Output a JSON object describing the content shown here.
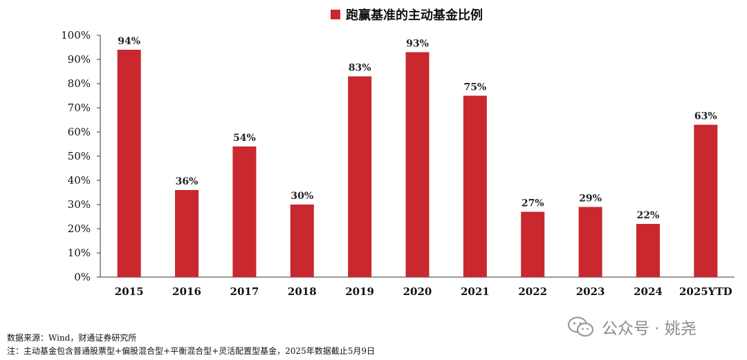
{
  "legend": {
    "label": "跑赢基准的主动基金比例",
    "color": "#C8282E"
  },
  "chart_data": {
    "type": "bar",
    "title": "",
    "categories": [
      "2015",
      "2016",
      "2017",
      "2018",
      "2019",
      "2020",
      "2021",
      "2022",
      "2023",
      "2024",
      "2025YTD"
    ],
    "series": [
      {
        "name": "跑赢基准的主动基金比例",
        "values": [
          94,
          36,
          54,
          30,
          83,
          93,
          75,
          27,
          29,
          22,
          63
        ],
        "labels": [
          "94%",
          "36%",
          "54%",
          "30%",
          "83%",
          "93%",
          "75%",
          "27%",
          "29%",
          "22%",
          "63%"
        ]
      }
    ],
    "yticks": [
      "0%",
      "10%",
      "20%",
      "30%",
      "40%",
      "50%",
      "60%",
      "70%",
      "80%",
      "90%",
      "100%"
    ],
    "ylim": [
      0,
      100
    ],
    "grid": false,
    "bar_color": "#C8282E",
    "legend_position": "top"
  },
  "footer": {
    "source": "数据来源：Wind，财通证券研究所",
    "note": "注：主动基金包含普通股票型+偏股混合型+平衡混合型+灵活配置型基金，2025年数据截止5月9日"
  },
  "watermark": {
    "text": "公众号 · 姚尧",
    "icon": "wechat-icon"
  }
}
